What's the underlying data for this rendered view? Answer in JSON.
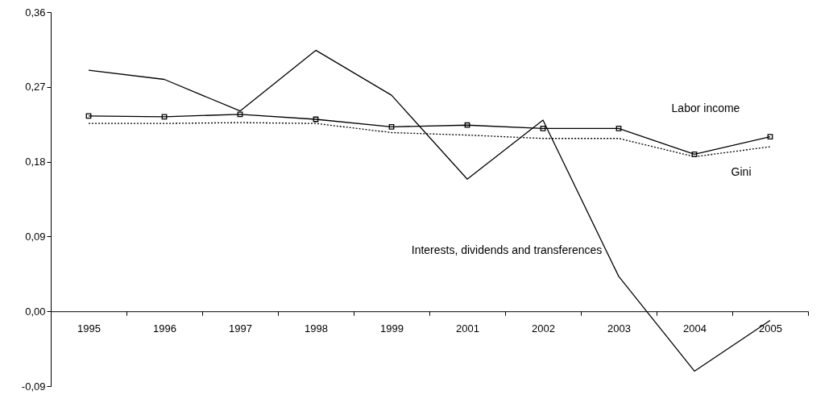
{
  "chart_data": {
    "type": "line",
    "categories": [
      "1995",
      "1996",
      "1997",
      "1998",
      "1999",
      "2001",
      "2002",
      "2003",
      "2004",
      "2005"
    ],
    "series": [
      {
        "name": "Interests, dividends and transferences",
        "color": "#000000",
        "line_style": "solid",
        "marker": "none",
        "values": [
          0.29,
          0.279,
          0.241,
          0.314,
          0.26,
          0.159,
          0.23,
          0.042,
          -0.072,
          -0.011
        ]
      },
      {
        "name": "Labor income",
        "color": "#000000",
        "line_style": "solid",
        "marker": "square",
        "values": [
          0.235,
          0.234,
          0.237,
          0.231,
          0.222,
          0.224,
          0.22,
          0.22,
          0.189,
          0.21
        ]
      },
      {
        "name": "Gini",
        "color": "#000000",
        "line_style": "dotted",
        "marker": "none",
        "values": [
          0.226,
          0.226,
          0.227,
          0.226,
          0.215,
          0.212,
          0.208,
          0.208,
          0.186,
          0.198
        ]
      }
    ],
    "ylim": [
      -0.09,
      0.36
    ],
    "yticks": [
      {
        "value": -0.09,
        "label": "-0,09"
      },
      {
        "value": 0,
        "label": "0,00"
      },
      {
        "value": 0.09,
        "label": "0,09"
      },
      {
        "value": 0.18,
        "label": "0,18"
      },
      {
        "value": 0.27,
        "label": "0,27"
      },
      {
        "value": 0.36,
        "label": "0,36"
      }
    ],
    "grid": false
  }
}
